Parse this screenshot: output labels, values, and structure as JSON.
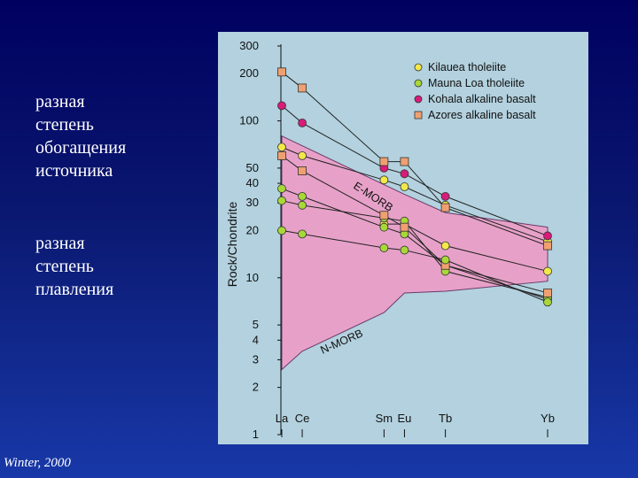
{
  "slide": {
    "text_block_1": [
      "разная",
      "степень",
      "обогащения",
      "источника"
    ],
    "text_block_2": [
      "разная",
      "степень",
      "плавления"
    ],
    "credit": "Winter, 2000"
  },
  "chart_data": {
    "type": "line",
    "ylabel": "Rock/Chondrite",
    "yscale": "log",
    "ylim": [
      1,
      300
    ],
    "y_ticks": [
      1,
      2,
      3,
      4,
      5,
      10,
      20,
      30,
      40,
      50,
      100,
      200,
      300
    ],
    "categories": [
      "La",
      "Ce",
      "Sm",
      "Eu",
      "Tb",
      "Yb"
    ],
    "category_positions": [
      57,
      58,
      62,
      63,
      65,
      70
    ],
    "series": [
      {
        "name": "Kilauea tholeiite",
        "color": "#f2e84a",
        "marker": "circle",
        "values": [
          68,
          60,
          42,
          38,
          29,
          17
        ]
      },
      {
        "name": "Mauna Loa tholeiite",
        "color": "#a8d838",
        "marker": "circle",
        "values": [
          20,
          19,
          15.5,
          15,
          13,
          7
        ]
      },
      {
        "name": "Kohala alkaline basalt",
        "color": "#d81c7a",
        "marker": "circle",
        "values": [
          125,
          97,
          50,
          46,
          33,
          18.5
        ]
      },
      {
        "name": "Azores alkaline basalt",
        "color": "#f0a070",
        "marker": "square",
        "values": [
          205,
          162,
          55,
          55,
          28,
          16
        ]
      }
    ],
    "extra_lines": [
      {
        "color": "#f2e84a",
        "marker": "circle",
        "values": [
          null,
          null,
          22,
          22,
          16,
          11
        ]
      },
      {
        "color": "#a8d838",
        "marker": "circle",
        "values": [
          37,
          33,
          21,
          19,
          12,
          7.3
        ]
      },
      {
        "color": "#a8d838",
        "marker": "circle",
        "values": [
          31,
          29,
          24,
          23,
          11,
          7.5
        ]
      },
      {
        "color": "#f0a070",
        "marker": "square",
        "values": [
          60,
          48,
          25,
          21,
          12,
          8
        ]
      }
    ],
    "bands": [
      {
        "label": "E-MORB",
        "color": "#e7a1c8",
        "upper": [
          [
            57,
            80
          ],
          [
            63,
            34
          ],
          [
            65,
            26
          ],
          [
            70,
            21
          ]
        ],
        "lower": [
          [
            57,
            2.6
          ],
          [
            58,
            3.4
          ],
          [
            62,
            6
          ],
          [
            63,
            8
          ],
          [
            65,
            8.2
          ],
          [
            70,
            9.5
          ]
        ]
      },
      {
        "label": "N-MORB",
        "color": "#e38ec8"
      }
    ],
    "legend_position": "top-right",
    "grid": false
  }
}
